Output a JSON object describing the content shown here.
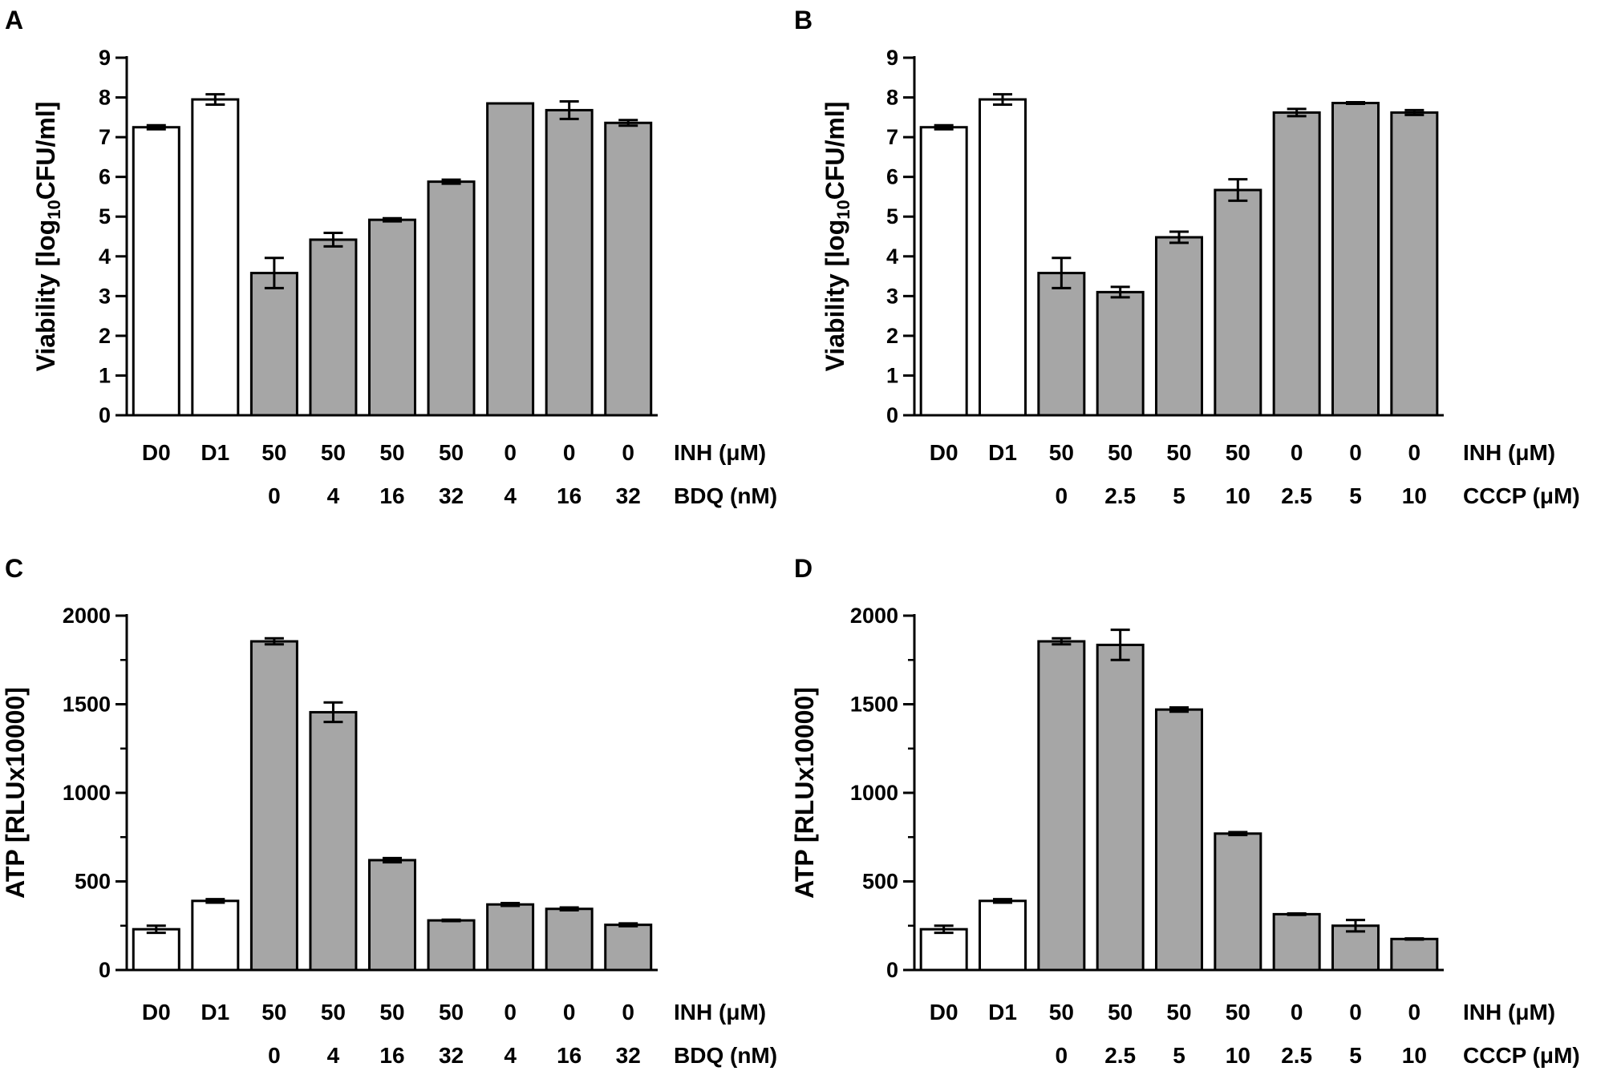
{
  "colors": {
    "control": "#ffffff",
    "treated": "#a6a6a6",
    "stroke": "#000000"
  },
  "chart_data": [
    {
      "panel": "A",
      "type": "bar",
      "ylabel_parts": [
        "Viability [log",
        "10",
        "CFU/ml]"
      ],
      "ylim": [
        0,
        9
      ],
      "yticks": [
        0,
        1,
        2,
        3,
        4,
        5,
        6,
        7,
        8,
        9
      ],
      "categories": [
        "D0",
        "D1",
        "50",
        "50",
        "50",
        "50",
        "0",
        "0",
        "0"
      ],
      "second_row": [
        "",
        "",
        "0",
        "4",
        "16",
        "32",
        "4",
        "16",
        "32"
      ],
      "row_names": [
        "INH (μM)",
        "BDQ (nM)"
      ],
      "values": [
        7.25,
        7.95,
        3.58,
        4.42,
        4.92,
        5.88,
        7.85,
        7.68,
        7.36
      ],
      "errors": [
        0.05,
        0.13,
        0.38,
        0.17,
        0.04,
        0.05,
        0.0,
        0.22,
        0.07
      ],
      "fills": [
        "control",
        "control",
        "treated",
        "treated",
        "treated",
        "treated",
        "treated",
        "treated",
        "treated"
      ]
    },
    {
      "panel": "B",
      "type": "bar",
      "ylabel_parts": [
        "Viability [log",
        "10",
        "CFU/ml]"
      ],
      "ylim": [
        0,
        9
      ],
      "yticks": [
        0,
        1,
        2,
        3,
        4,
        5,
        6,
        7,
        8,
        9
      ],
      "categories": [
        "D0",
        "D1",
        "50",
        "50",
        "50",
        "50",
        "0",
        "0",
        "0"
      ],
      "second_row": [
        "",
        "",
        "0",
        "2.5",
        "5",
        "10",
        "2.5",
        "5",
        "10"
      ],
      "row_names": [
        "INH (μM)",
        "CCCP (μM)"
      ],
      "values": [
        7.25,
        7.95,
        3.58,
        3.1,
        4.48,
        5.67,
        7.62,
        7.86,
        7.62
      ],
      "errors": [
        0.05,
        0.13,
        0.38,
        0.13,
        0.14,
        0.27,
        0.09,
        0.02,
        0.06
      ],
      "fills": [
        "control",
        "control",
        "treated",
        "treated",
        "treated",
        "treated",
        "treated",
        "treated",
        "treated"
      ]
    },
    {
      "panel": "C",
      "type": "bar",
      "ylabel_parts": [
        "ATP [RLUx10000]"
      ],
      "ylim": [
        0,
        2000
      ],
      "yticks": [
        0,
        500,
        1000,
        1500,
        2000
      ],
      "categories": [
        "D0",
        "D1",
        "50",
        "50",
        "50",
        "50",
        "0",
        "0",
        "0"
      ],
      "second_row": [
        "",
        "",
        "0",
        "4",
        "16",
        "32",
        "4",
        "16",
        "32"
      ],
      "row_names": [
        "INH (μM)",
        "BDQ (nM)"
      ],
      "values": [
        230,
        390,
        1855,
        1455,
        620,
        280,
        370,
        345,
        255
      ],
      "errors": [
        20,
        10,
        17,
        55,
        12,
        4,
        8,
        8,
        8
      ],
      "fills": [
        "control",
        "control",
        "treated",
        "treated",
        "treated",
        "treated",
        "treated",
        "treated",
        "treated"
      ]
    },
    {
      "panel": "D",
      "type": "bar",
      "ylabel_parts": [
        "ATP [RLUx10000]"
      ],
      "ylim": [
        0,
        2000
      ],
      "yticks": [
        0,
        500,
        1000,
        1500,
        2000
      ],
      "categories": [
        "D0",
        "D1",
        "50",
        "50",
        "50",
        "50",
        "0",
        "0",
        "0"
      ],
      "second_row": [
        "",
        "",
        "0",
        "2.5",
        "5",
        "10",
        "2.5",
        "5",
        "10"
      ],
      "row_names": [
        "INH (μM)",
        "CCCP (μM)"
      ],
      "values": [
        230,
        390,
        1855,
        1835,
        1470,
        770,
        315,
        250,
        175
      ],
      "errors": [
        20,
        10,
        17,
        85,
        12,
        8,
        4,
        32,
        3
      ],
      "fills": [
        "control",
        "control",
        "treated",
        "treated",
        "treated",
        "treated",
        "treated",
        "treated",
        "treated"
      ]
    }
  ]
}
